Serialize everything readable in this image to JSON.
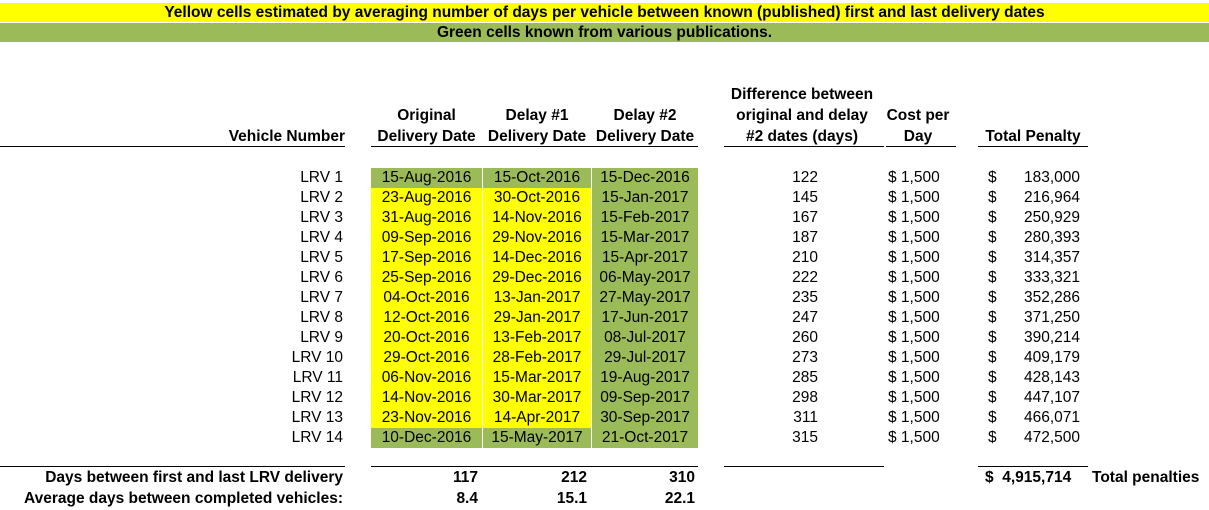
{
  "banners": {
    "yellow": "Yellow cells estimated by averaging number of days per vehicle between known (published) first and last delivery dates",
    "green": "Green cells known from various publications."
  },
  "headers": {
    "vehicle_number": "Vehicle Number",
    "original": [
      "Original",
      "Delivery Date"
    ],
    "delay1": [
      "Delay #1",
      "Delivery Date"
    ],
    "delay2": [
      "Delay #2",
      "Delivery Date"
    ],
    "difference": [
      "Difference between",
      "original and delay",
      "#2 dates (days)"
    ],
    "cost": [
      "Cost per",
      "Day"
    ],
    "total_penalty": "Total Penalty"
  },
  "colors": {
    "estimated": "#ffff00",
    "known": "#9bbb59"
  },
  "rows": [
    {
      "vehicle": "LRV 1",
      "original": "15-Aug-2016",
      "delay1": "15-Oct-2016",
      "delay2": "15-Dec-2016",
      "diff": "122",
      "cost": "$ 1,500",
      "usd": "$",
      "penalty": "183,000",
      "fill": [
        "g",
        "g",
        "g"
      ]
    },
    {
      "vehicle": "LRV 2",
      "original": "23-Aug-2016",
      "delay1": "30-Oct-2016",
      "delay2": "15-Jan-2017",
      "diff": "145",
      "cost": "$ 1,500",
      "usd": "$",
      "penalty": "216,964",
      "fill": [
        "y",
        "y",
        "g"
      ]
    },
    {
      "vehicle": "LRV 3",
      "original": "31-Aug-2016",
      "delay1": "14-Nov-2016",
      "delay2": "15-Feb-2017",
      "diff": "167",
      "cost": "$ 1,500",
      "usd": "$",
      "penalty": "250,929",
      "fill": [
        "y",
        "y",
        "g"
      ]
    },
    {
      "vehicle": "LRV 4",
      "original": "09-Sep-2016",
      "delay1": "29-Nov-2016",
      "delay2": "15-Mar-2017",
      "diff": "187",
      "cost": "$ 1,500",
      "usd": "$",
      "penalty": "280,393",
      "fill": [
        "y",
        "y",
        "g"
      ]
    },
    {
      "vehicle": "LRV 5",
      "original": "17-Sep-2016",
      "delay1": "14-Dec-2016",
      "delay2": "15-Apr-2017",
      "diff": "210",
      "cost": "$ 1,500",
      "usd": "$",
      "penalty": "314,357",
      "fill": [
        "y",
        "y",
        "g"
      ]
    },
    {
      "vehicle": "LRV 6",
      "original": "25-Sep-2016",
      "delay1": "29-Dec-2016",
      "delay2": "06-May-2017",
      "diff": "222",
      "cost": "$ 1,500",
      "usd": "$",
      "penalty": "333,321",
      "fill": [
        "y",
        "y",
        "g"
      ]
    },
    {
      "vehicle": "LRV 7",
      "original": "04-Oct-2016",
      "delay1": "13-Jan-2017",
      "delay2": "27-May-2017",
      "diff": "235",
      "cost": "$ 1,500",
      "usd": "$",
      "penalty": "352,286",
      "fill": [
        "y",
        "y",
        "g"
      ]
    },
    {
      "vehicle": "LRV 8",
      "original": "12-Oct-2016",
      "delay1": "29-Jan-2017",
      "delay2": "17-Jun-2017",
      "diff": "247",
      "cost": "$ 1,500",
      "usd": "$",
      "penalty": "371,250",
      "fill": [
        "y",
        "y",
        "g"
      ]
    },
    {
      "vehicle": "LRV 9",
      "original": "20-Oct-2016",
      "delay1": "13-Feb-2017",
      "delay2": "08-Jul-2017",
      "diff": "260",
      "cost": "$ 1,500",
      "usd": "$",
      "penalty": "390,214",
      "fill": [
        "y",
        "y",
        "g"
      ]
    },
    {
      "vehicle": "LRV 10",
      "original": "29-Oct-2016",
      "delay1": "28-Feb-2017",
      "delay2": "29-Jul-2017",
      "diff": "273",
      "cost": "$ 1,500",
      "usd": "$",
      "penalty": "409,179",
      "fill": [
        "y",
        "y",
        "g"
      ]
    },
    {
      "vehicle": "LRV 11",
      "original": "06-Nov-2016",
      "delay1": "15-Mar-2017",
      "delay2": "19-Aug-2017",
      "diff": "285",
      "cost": "$ 1,500",
      "usd": "$",
      "penalty": "428,143",
      "fill": [
        "y",
        "y",
        "g"
      ]
    },
    {
      "vehicle": "LRV 12",
      "original": "14-Nov-2016",
      "delay1": "30-Mar-2017",
      "delay2": "09-Sep-2017",
      "diff": "298",
      "cost": "$ 1,500",
      "usd": "$",
      "penalty": "447,107",
      "fill": [
        "y",
        "y",
        "g"
      ]
    },
    {
      "vehicle": "LRV 13",
      "original": "23-Nov-2016",
      "delay1": "14-Apr-2017",
      "delay2": "30-Sep-2017",
      "diff": "311",
      "cost": "$ 1,500",
      "usd": "$",
      "penalty": "466,071",
      "fill": [
        "y",
        "y",
        "g"
      ]
    },
    {
      "vehicle": "LRV 14",
      "original": "10-Dec-2016",
      "delay1": "15-May-2017",
      "delay2": "21-Oct-2017",
      "diff": "315",
      "cost": "$ 1,500",
      "usd": "$",
      "penalty": "472,500",
      "fill": [
        "g",
        "g",
        "g"
      ]
    }
  ],
  "summary": {
    "days_label": "Days between first and last LRV delivery",
    "days_values": [
      "117",
      "212",
      "310"
    ],
    "avg_label": "Average days between completed vehicles:",
    "avg_values": [
      "8.4",
      "15.1",
      "22.1"
    ],
    "total_amount": "$  4,915,714",
    "total_label": "Total penalties"
  }
}
